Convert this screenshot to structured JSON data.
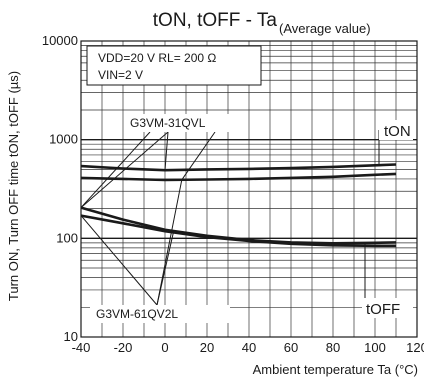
{
  "chart_data": {
    "type": "line",
    "title_main": "tON, tOFF - Ta",
    "title_sub": "(Average value)",
    "xlabel": "Ambient temperature Ta (°C)",
    "ylabel": "Turn ON, Turn OFF time tON, tOFF (µs)",
    "x_scale": "linear",
    "y_scale": "log",
    "xlim": [
      -40,
      120
    ],
    "ylim": [
      10,
      10000
    ],
    "x_ticks": [
      -40,
      -20,
      0,
      20,
      40,
      60,
      80,
      100,
      120
    ],
    "x_tick_labels": [
      "-40",
      "-20",
      "0",
      "20",
      "40",
      "60",
      "80",
      "100",
      "120"
    ],
    "y_ticks": [
      10,
      100,
      1000,
      10000
    ],
    "y_tick_labels": [
      "10",
      "100",
      "1000",
      "10000"
    ],
    "grid": true,
    "conditions": [
      "VDD=20 V  RL= 200 Ω",
      "VIN=2 V"
    ],
    "annotations": [
      "G3VM-31QVL",
      "G3VM-61QV2L",
      "tON",
      "tOFF"
    ],
    "series": [
      {
        "x": [
          -40,
          -20,
          0,
          20,
          40,
          60,
          80,
          100,
          110
        ],
        "values": [
          540,
          510,
          490,
          500,
          505,
          515,
          530,
          550,
          560
        ]
      },
      {
        "x": [
          -40,
          -20,
          0,
          20,
          40,
          60,
          80,
          100,
          110
        ],
        "values": [
          410,
          400,
          390,
          395,
          400,
          410,
          420,
          440,
          450
        ]
      },
      {
        "x": [
          -40,
          -20,
          0,
          20,
          40,
          60,
          80,
          100,
          110
        ],
        "values": [
          205,
          155,
          122,
          106,
          96,
          91,
          89,
          90,
          91
        ]
      },
      {
        "x": [
          -40,
          -20,
          0,
          20,
          40,
          60,
          80,
          100,
          110
        ],
        "values": [
          170,
          142,
          118,
          103,
          94,
          88,
          85,
          84,
          84
        ]
      }
    ]
  }
}
